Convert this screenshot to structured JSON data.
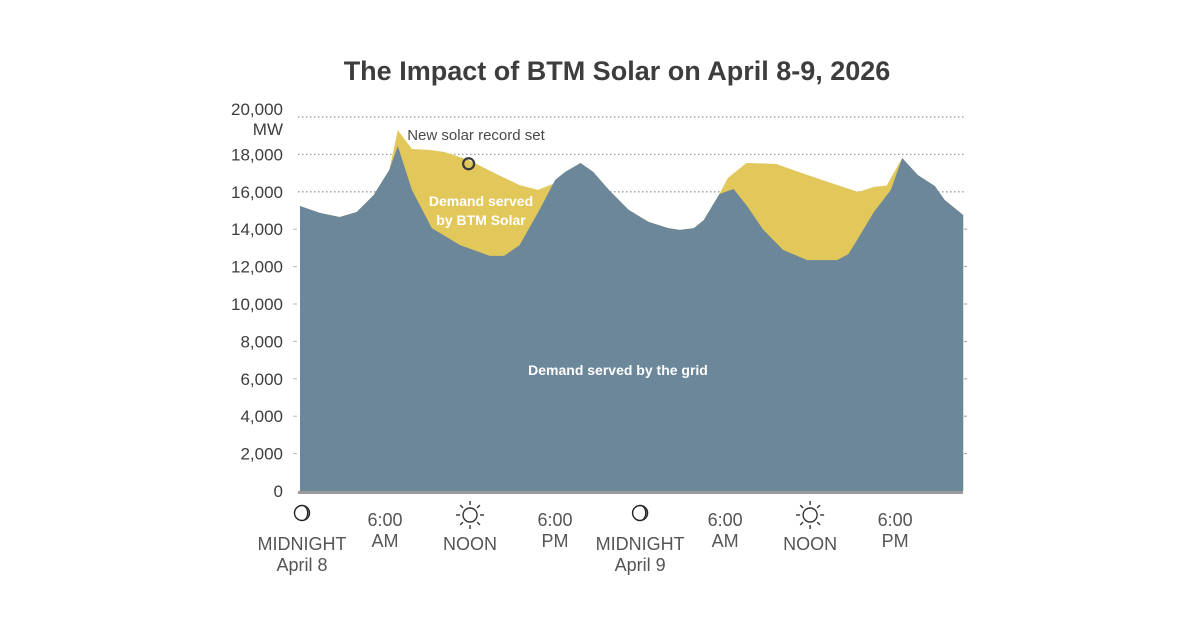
{
  "chart_data": {
    "type": "area",
    "title": "The Impact of BTM Solar on April 8-9, 2026",
    "ylabel": "MW",
    "xlabel": "",
    "ylim": [
      0,
      20000
    ],
    "xlim_hours": [
      0,
      47
    ],
    "grid": "horizontal dotted at upper ticks",
    "yticks": [
      {
        "value": 0,
        "label": "0"
      },
      {
        "value": 2000,
        "label": "2,000"
      },
      {
        "value": 4000,
        "label": "4,000"
      },
      {
        "value": 6000,
        "label": "6,000"
      },
      {
        "value": 8000,
        "label": "8,000"
      },
      {
        "value": 10000,
        "label": "10,000"
      },
      {
        "value": 12000,
        "label": "12,000"
      },
      {
        "value": 14000,
        "label": "14,000"
      },
      {
        "value": 16000,
        "label": "16,000"
      },
      {
        "value": 18000,
        "label": "18,000"
      },
      {
        "value": 20000,
        "label": "20,000"
      }
    ],
    "yunit_label": "MW",
    "xticks": [
      {
        "hour": 0,
        "icon": "moon",
        "lines": [
          "MIDNIGHT",
          "April 8"
        ]
      },
      {
        "hour": 6,
        "icon": "",
        "lines": [
          "6:00",
          "AM"
        ]
      },
      {
        "hour": 12,
        "icon": "sun",
        "lines": [
          "NOON"
        ]
      },
      {
        "hour": 18,
        "icon": "",
        "lines": [
          "6:00",
          "PM"
        ]
      },
      {
        "hour": 24,
        "icon": "moon",
        "lines": [
          "MIDNIGHT",
          "April 9"
        ]
      },
      {
        "hour": 30,
        "icon": "",
        "lines": [
          "6:00",
          "AM"
        ]
      },
      {
        "hour": 36,
        "icon": "sun",
        "lines": [
          "NOON"
        ]
      },
      {
        "hour": 42,
        "icon": "",
        "lines": [
          "6:00",
          "PM"
        ]
      }
    ],
    "series": [
      {
        "name": "Demand served by BTM Solar",
        "color": "#e2c75a",
        "role": "total demand (top of stacked area)",
        "points": [
          [
            0,
            15240
          ],
          [
            1.4,
            14870
          ],
          [
            2.8,
            14650
          ],
          [
            4.0,
            14920
          ],
          [
            5.2,
            15830
          ],
          [
            6.3,
            17170
          ],
          [
            6.9,
            19300
          ],
          [
            7.9,
            18290
          ],
          [
            9.1,
            18240
          ],
          [
            10.2,
            18130
          ],
          [
            11.9,
            17700
          ],
          [
            14.0,
            16900
          ],
          [
            15.5,
            16360
          ],
          [
            16.8,
            16100
          ],
          [
            18.0,
            16470
          ],
          [
            18.7,
            17060
          ],
          [
            19.8,
            17540
          ],
          [
            20.7,
            17060
          ],
          [
            21.8,
            16100
          ],
          [
            23.2,
            15030
          ],
          [
            24.6,
            14390
          ],
          [
            26.0,
            14060
          ],
          [
            26.8,
            13960
          ],
          [
            27.8,
            14060
          ],
          [
            28.5,
            14490
          ],
          [
            29.6,
            15880
          ],
          [
            30.2,
            16740
          ],
          [
            31.5,
            17540
          ],
          [
            33.6,
            17490
          ],
          [
            35.2,
            17060
          ],
          [
            37.3,
            16520
          ],
          [
            39.4,
            15990
          ],
          [
            40.5,
            16260
          ],
          [
            41.4,
            16330
          ],
          [
            42.5,
            17810
          ],
          [
            43.6,
            16900
          ],
          [
            44.8,
            16310
          ],
          [
            45.5,
            15560
          ],
          [
            46.8,
            14760
          ]
        ]
      },
      {
        "name": "Demand served by the grid",
        "color": "#6b8799",
        "role": "grid demand (lower area)",
        "points": [
          [
            0,
            15240
          ],
          [
            1.4,
            14870
          ],
          [
            2.8,
            14650
          ],
          [
            4.0,
            14920
          ],
          [
            5.2,
            15830
          ],
          [
            6.3,
            17170
          ],
          [
            6.9,
            18450
          ],
          [
            7.9,
            16100
          ],
          [
            9.3,
            14060
          ],
          [
            11.3,
            13150
          ],
          [
            13.4,
            12570
          ],
          [
            14.4,
            12570
          ],
          [
            15.5,
            13150
          ],
          [
            16.9,
            15030
          ],
          [
            18.0,
            16630
          ],
          [
            18.7,
            17060
          ],
          [
            19.8,
            17540
          ],
          [
            20.7,
            17060
          ],
          [
            21.8,
            16100
          ],
          [
            23.2,
            15030
          ],
          [
            24.6,
            14390
          ],
          [
            26.0,
            14060
          ],
          [
            26.8,
            13960
          ],
          [
            27.8,
            14060
          ],
          [
            28.5,
            14490
          ],
          [
            29.6,
            15880
          ],
          [
            30.6,
            16150
          ],
          [
            31.5,
            15290
          ],
          [
            32.7,
            13960
          ],
          [
            34.1,
            12890
          ],
          [
            35.8,
            12350
          ],
          [
            37.9,
            12350
          ],
          [
            38.7,
            12670
          ],
          [
            39.4,
            13530
          ],
          [
            40.5,
            14920
          ],
          [
            41.7,
            16100
          ],
          [
            42.5,
            17810
          ],
          [
            43.6,
            16900
          ],
          [
            44.8,
            16310
          ],
          [
            45.5,
            15560
          ],
          [
            46.8,
            14760
          ]
        ]
      }
    ],
    "annotations": [
      {
        "text": "New solar record set",
        "marker": "circle",
        "hour": 11.9,
        "value": 17500
      },
      {
        "text_lines": [
          "Demand served",
          "by BTM Solar"
        ],
        "hour": 12.9,
        "value": 15350,
        "target": "Demand served by BTM Solar"
      },
      {
        "text_lines": [
          "Demand served by the grid"
        ],
        "hour": 22.5,
        "value": 6500,
        "target": "Demand served by the grid"
      }
    ]
  },
  "colors": {
    "grid_area": "#6b8799",
    "solar_area": "#e2c75a",
    "baseline": "#9a9a9a",
    "gridline": "#999999",
    "text": "#3d3d3d"
  }
}
